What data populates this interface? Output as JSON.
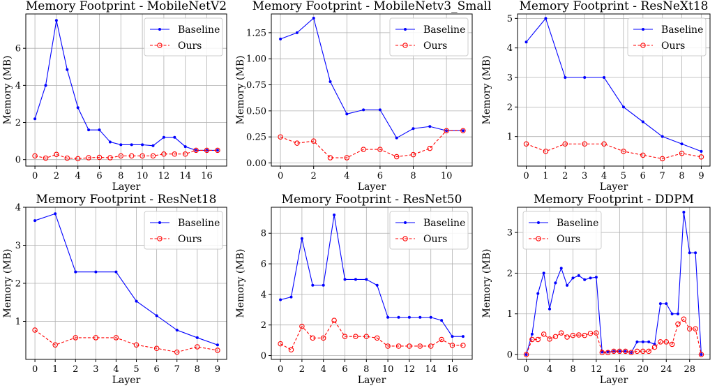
{
  "chart_data": [
    {
      "type": "line",
      "title": "Memory Footprint - MobileNetV2",
      "xlabel": "Layer",
      "ylabel": "Memory (MB)",
      "xlim": [
        -0.85,
        17.85
      ],
      "ylim": [
        -0.35,
        7.85
      ],
      "xticks": [
        0,
        2,
        4,
        6,
        8,
        10,
        12,
        14,
        16
      ],
      "xtick_labels": [
        "0",
        "2",
        "4",
        "6",
        "8",
        "10",
        "12",
        "14",
        "16"
      ],
      "yticks": [
        0,
        2,
        4,
        6
      ],
      "ytick_labels": [
        "0",
        "2",
        "4",
        "6"
      ],
      "legend_position": "top-right",
      "series": [
        {
          "name": "Baseline",
          "color": "#0000ff",
          "marker": "dot",
          "linestyle": "solid",
          "x": [
            0,
            1,
            2,
            3,
            4,
            5,
            6,
            7,
            8,
            9,
            10,
            11,
            12,
            13,
            14,
            15,
            16,
            17
          ],
          "values": [
            2.2,
            4.0,
            7.5,
            4.85,
            2.8,
            1.6,
            1.6,
            0.95,
            0.8,
            0.8,
            0.8,
            0.75,
            1.2,
            1.2,
            0.7,
            0.5,
            0.5,
            0.5
          ]
        },
        {
          "name": "Ours",
          "color": "#ff0000",
          "marker": "circle",
          "linestyle": "dashed",
          "x": [
            0,
            1,
            2,
            3,
            4,
            5,
            6,
            7,
            8,
            9,
            10,
            11,
            12,
            13,
            14,
            15,
            16,
            17
          ],
          "values": [
            0.2,
            0.08,
            0.28,
            0.08,
            0.05,
            0.1,
            0.12,
            0.1,
            0.2,
            0.2,
            0.2,
            0.2,
            0.3,
            0.3,
            0.3,
            0.5,
            0.5,
            0.5
          ]
        }
      ]
    },
    {
      "type": "line",
      "title": "Memory Footprint - MobileNetv3_Small",
      "xlabel": "Layer",
      "ylabel": "Memory (MB)",
      "xlim": [
        -0.55,
        11.55
      ],
      "ylim": [
        -0.03,
        1.43
      ],
      "xticks": [
        0,
        2,
        4,
        6,
        8,
        10
      ],
      "xtick_labels": [
        "0",
        "2",
        "4",
        "6",
        "8",
        "10"
      ],
      "yticks": [
        0,
        0.25,
        0.5,
        0.75,
        1.0,
        1.25
      ],
      "ytick_labels": [
        "0.00",
        "0.25",
        "0.50",
        "0.75",
        "1.00",
        "1.25"
      ],
      "legend_position": "top-right",
      "series": [
        {
          "name": "Baseline",
          "color": "#0000ff",
          "marker": "dot",
          "linestyle": "solid",
          "x": [
            0,
            1,
            2,
            3,
            4,
            5,
            6,
            7,
            8,
            9,
            10,
            11
          ],
          "values": [
            1.19,
            1.25,
            1.39,
            0.78,
            0.47,
            0.51,
            0.51,
            0.24,
            0.33,
            0.35,
            0.31,
            0.31
          ]
        },
        {
          "name": "Ours",
          "color": "#ff0000",
          "marker": "circle",
          "linestyle": "dashed",
          "x": [
            0,
            1,
            2,
            3,
            4,
            5,
            6,
            7,
            8,
            9,
            10,
            11
          ],
          "values": [
            0.25,
            0.19,
            0.21,
            0.05,
            0.05,
            0.13,
            0.13,
            0.06,
            0.08,
            0.14,
            0.31,
            0.31
          ]
        }
      ]
    },
    {
      "type": "line",
      "title": "Memory Footprint - ResNeXt18",
      "xlabel": "Layer",
      "ylabel": "Memory (MB)",
      "xlim": [
        -0.45,
        9.45
      ],
      "ylim": [
        0.0,
        5.15
      ],
      "xticks": [
        0,
        1,
        2,
        3,
        4,
        5,
        6,
        7,
        8,
        9
      ],
      "xtick_labels": [
        "0",
        "1",
        "2",
        "3",
        "4",
        "5",
        "6",
        "7",
        "8",
        "9"
      ],
      "yticks": [
        1,
        2,
        3,
        4,
        5
      ],
      "ytick_labels": [
        "1",
        "2",
        "3",
        "4",
        "5"
      ],
      "legend_position": "top-right",
      "series": [
        {
          "name": "Baseline",
          "color": "#0000ff",
          "marker": "dot",
          "linestyle": "solid",
          "x": [
            0,
            1,
            2,
            3,
            4,
            5,
            6,
            7,
            8,
            9
          ],
          "values": [
            4.2,
            5.0,
            3.0,
            3.0,
            3.0,
            2.0,
            1.5,
            1.0,
            0.75,
            0.5
          ]
        },
        {
          "name": "Ours",
          "color": "#ff0000",
          "marker": "circle",
          "linestyle": "dashed",
          "x": [
            0,
            1,
            2,
            3,
            4,
            5,
            6,
            7,
            8,
            9
          ],
          "values": [
            0.75,
            0.5,
            0.75,
            0.75,
            0.75,
            0.5,
            0.37,
            0.25,
            0.43,
            0.31
          ]
        }
      ]
    },
    {
      "type": "line",
      "title": "Memory Footprint - ResNet18",
      "xlabel": "Layer",
      "ylabel": "Memory (MB)",
      "xlim": [
        -0.45,
        9.45
      ],
      "ylim": [
        0.0,
        4.0
      ],
      "xticks": [
        0,
        1,
        2,
        3,
        4,
        5,
        6,
        7,
        8,
        9
      ],
      "xtick_labels": [
        "0",
        "1",
        "2",
        "3",
        "4",
        "5",
        "6",
        "7",
        "8",
        "9"
      ],
      "yticks": [
        1,
        2,
        3,
        4
      ],
      "ytick_labels": [
        "1",
        "2",
        "3",
        "4"
      ],
      "legend_position": "top-right",
      "series": [
        {
          "name": "Baseline",
          "color": "#0000ff",
          "marker": "dot",
          "linestyle": "solid",
          "x": [
            0,
            1,
            2,
            3,
            4,
            5,
            6,
            7,
            8,
            9
          ],
          "values": [
            3.65,
            3.83,
            2.3,
            2.3,
            2.3,
            1.53,
            1.15,
            0.77,
            0.57,
            0.38
          ]
        },
        {
          "name": "Ours",
          "color": "#ff0000",
          "marker": "circle",
          "linestyle": "dashed",
          "x": [
            0,
            1,
            2,
            3,
            4,
            5,
            6,
            7,
            8,
            9
          ],
          "values": [
            0.77,
            0.38,
            0.57,
            0.57,
            0.57,
            0.38,
            0.29,
            0.19,
            0.33,
            0.24
          ]
        }
      ]
    },
    {
      "type": "line",
      "title": "Memory Footprint - ResNet50",
      "xlabel": "Layer",
      "ylabel": "Memory (MB)",
      "xlim": [
        -0.85,
        17.85
      ],
      "ylim": [
        -0.25,
        9.7
      ],
      "xticks": [
        0,
        2,
        4,
        6,
        8,
        10,
        12,
        14,
        16
      ],
      "xtick_labels": [
        "0",
        "2",
        "4",
        "6",
        "8",
        "10",
        "12",
        "14",
        "16"
      ],
      "yticks": [
        0,
        2,
        4,
        6,
        8
      ],
      "ytick_labels": [
        "0",
        "2",
        "4",
        "6",
        "8"
      ],
      "legend_position": "top-right",
      "series": [
        {
          "name": "Baseline",
          "color": "#0000ff",
          "marker": "dot",
          "linestyle": "solid",
          "x": [
            0,
            1,
            2,
            3,
            4,
            5,
            6,
            7,
            8,
            9,
            10,
            11,
            12,
            13,
            14,
            15,
            16,
            17
          ],
          "values": [
            3.65,
            3.83,
            7.65,
            4.6,
            4.6,
            9.2,
            4.98,
            4.98,
            4.98,
            4.6,
            2.5,
            2.5,
            2.5,
            2.5,
            2.5,
            2.3,
            1.25,
            1.25
          ]
        },
        {
          "name": "Ours",
          "color": "#ff0000",
          "marker": "circle",
          "linestyle": "dashed",
          "x": [
            0,
            1,
            2,
            3,
            4,
            5,
            6,
            7,
            8,
            9,
            10,
            11,
            12,
            13,
            14,
            15,
            16,
            17
          ],
          "values": [
            0.77,
            0.38,
            1.91,
            1.15,
            1.15,
            2.3,
            1.25,
            1.25,
            1.25,
            1.15,
            0.62,
            0.62,
            0.62,
            0.62,
            0.62,
            1.05,
            0.67,
            0.67
          ]
        }
      ]
    },
    {
      "type": "line",
      "title": "Memory Footprint - DDPM",
      "xlabel": "Layer",
      "ylabel": "Memory (MB)",
      "xlim": [
        -1.5,
        31.5
      ],
      "ylim": [
        -0.12,
        3.62
      ],
      "xticks": [
        0,
        4,
        8,
        12,
        16,
        20,
        24,
        28
      ],
      "xtick_labels": [
        "0",
        "4",
        "8",
        "12",
        "16",
        "20",
        "24",
        "28"
      ],
      "yticks": [
        0,
        1,
        2,
        3
      ],
      "ytick_labels": [
        "0",
        "1",
        "2",
        "3"
      ],
      "legend_position": "top-left",
      "series": [
        {
          "name": "Baseline",
          "color": "#0000ff",
          "marker": "dot",
          "linestyle": "solid",
          "x": [
            0,
            1,
            2,
            3,
            4,
            5,
            6,
            7,
            8,
            9,
            10,
            11,
            12,
            13,
            14,
            15,
            16,
            17,
            18,
            19,
            20,
            21,
            22,
            23,
            24,
            25,
            26,
            27,
            28,
            29,
            30
          ],
          "values": [
            0.0,
            0.5,
            1.5,
            2.0,
            1.12,
            1.76,
            2.12,
            1.7,
            1.88,
            1.94,
            1.84,
            1.88,
            1.9,
            0.06,
            0.06,
            0.08,
            0.08,
            0.08,
            0.05,
            0.31,
            0.31,
            0.31,
            0.25,
            1.25,
            1.25,
            1.0,
            1.0,
            3.5,
            2.5,
            2.5,
            0.0
          ]
        },
        {
          "name": "Ours",
          "color": "#ff0000",
          "marker": "circle",
          "linestyle": "dashed",
          "x": [
            0,
            1,
            2,
            3,
            4,
            5,
            6,
            7,
            8,
            9,
            10,
            11,
            12,
            13,
            14,
            15,
            16,
            17,
            18,
            19,
            20,
            21,
            22,
            23,
            24,
            25,
            26,
            27,
            28,
            29,
            30
          ],
          "values": [
            0.0,
            0.37,
            0.37,
            0.5,
            0.38,
            0.44,
            0.53,
            0.43,
            0.47,
            0.48,
            0.47,
            0.52,
            0.53,
            0.05,
            0.05,
            0.08,
            0.08,
            0.08,
            0.05,
            0.08,
            0.08,
            0.08,
            0.18,
            0.31,
            0.31,
            0.25,
            0.75,
            0.87,
            0.63,
            0.63,
            0.0
          ]
        }
      ]
    }
  ]
}
